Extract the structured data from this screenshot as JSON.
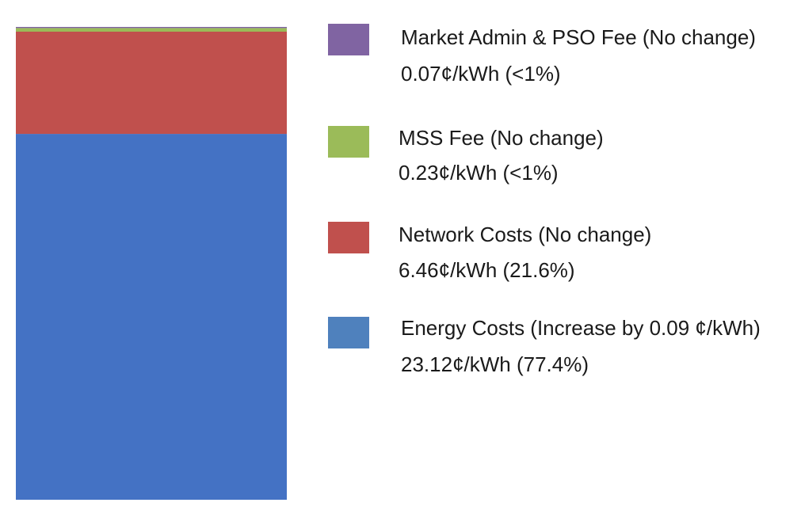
{
  "chart_data": {
    "type": "bar",
    "stacked": true,
    "orientation": "vertical",
    "unit": "¢/kWh",
    "categories": [
      ""
    ],
    "series": [
      {
        "name": "Energy Costs (Increase by 0.09 ¢/kWh)",
        "values": [
          23.12
        ],
        "value_label": "23.12¢/kWh (77.4%)",
        "color": "#4472C4",
        "legend_color": "#4F81BD"
      },
      {
        "name": "Network Costs (No change)",
        "values": [
          6.46
        ],
        "value_label": "6.46¢/kWh (21.6%)",
        "color": "#C0504D",
        "legend_color": "#C0504D"
      },
      {
        "name": "MSS Fee (No change)",
        "values": [
          0.23
        ],
        "value_label": "0.23¢/kWh (<1%)",
        "color": "#9BBB59",
        "legend_color": "#9BBB59"
      },
      {
        "name": "Market Admin & PSO Fee (No change)",
        "values": [
          0.07
        ],
        "value_label": "0.07¢/kWh (<1%)",
        "color": "#8064A2",
        "legend_color": "#8064A2"
      }
    ],
    "legend_order": [
      3,
      2,
      1,
      0
    ],
    "legend_position": "right",
    "grid": false,
    "title": "",
    "xlabel": "",
    "ylabel": ""
  }
}
